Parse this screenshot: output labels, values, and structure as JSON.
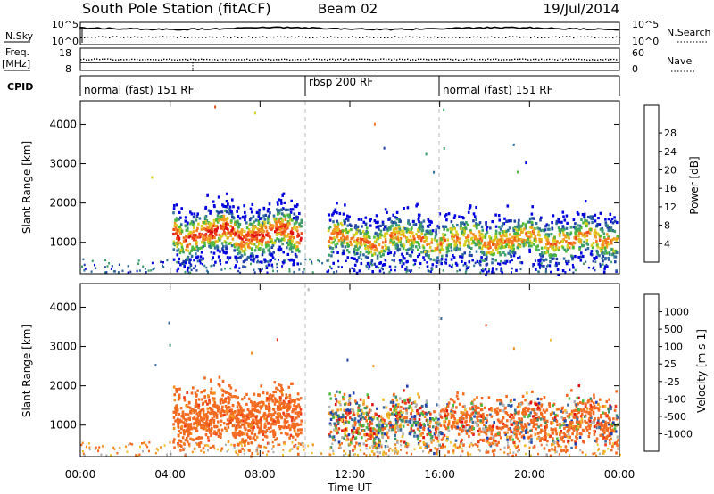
{
  "header": {
    "station": "South Pole Station (fitACF)",
    "beam": "Beam 02",
    "date": "19/Jul/2014"
  },
  "summary": {
    "nsky_label": "N.Sky",
    "nsky_ticks": [
      "10^5",
      "10^0"
    ],
    "nsearch_label": "N.Search",
    "nsearch_ticks": [
      "10^5",
      "10^0"
    ],
    "freq_label_top": "Freq.",
    "freq_label_bottom": "[MHz]",
    "freq_ticks": [
      "18",
      "8"
    ],
    "nave_label": "Nave",
    "nave_ticks": [
      "60",
      "0"
    ],
    "cpid_label": "CPID",
    "cpid_segments": [
      {
        "label": "normal (fast) 151 RF",
        "start_hour": 0
      },
      {
        "label": "rbsp 200 RF",
        "start_hour": 10
      },
      {
        "label": "normal (fast) 151 RF",
        "start_hour": 16
      }
    ]
  },
  "chart_data": [
    {
      "type": "heatmap",
      "ylabel": "Slant Range [km]",
      "yticks": [
        "1000",
        "2000",
        "3000",
        "4000"
      ],
      "xlim_hours": [
        0,
        24
      ],
      "ylim_km": [
        200,
        4600
      ],
      "colorbar": {
        "label": "Power [dB]",
        "ticks": [
          "4",
          "8",
          "12",
          "16",
          "20",
          "24",
          "28"
        ],
        "colors": [
          "#0000e0",
          "#1e3ea8",
          "#2f6e9a",
          "#3d9e6a",
          "#4fb93a",
          "#d7d020",
          "#f2a020",
          "#f67820",
          "#f04818",
          "#e01010"
        ]
      },
      "echo_regions": [
        {
          "t0": 4.1,
          "t1": 9.8,
          "r0": 600,
          "r1": 1900,
          "intensity": "high"
        },
        {
          "t0": 11.0,
          "t1": 23.9,
          "r0": 500,
          "r1": 1700,
          "intensity": "medium"
        }
      ]
    },
    {
      "type": "heatmap",
      "ylabel": "Slant Range [km]",
      "yticks": [
        "1000",
        "2000",
        "3000",
        "4000"
      ],
      "xlim_hours": [
        0,
        24
      ],
      "ylim_km": [
        200,
        4600
      ],
      "colorbar": {
        "label": "Velocity [m s-1]",
        "ticks": [
          "1000",
          "500",
          "100",
          "25",
          "-25",
          "-100",
          "-500",
          "-1000"
        ],
        "colors": [
          "#2040b0",
          "#3a6aa0",
          "#3f8a6a",
          "#50b840",
          "#b0b0b0",
          "#f0c030",
          "#f29020",
          "#f46a20",
          "#f03a18",
          "#e01010"
        ]
      },
      "echo_regions": [
        {
          "t0": 4.1,
          "t1": 9.8,
          "r0": 600,
          "r1": 1900,
          "dominant": "-100"
        },
        {
          "t0": 11.0,
          "t1": 23.9,
          "r0": 500,
          "r1": 1700,
          "dominant": "mixed"
        }
      ]
    }
  ],
  "xaxis": {
    "ticks": [
      "00:00",
      "04:00",
      "08:00",
      "12:00",
      "16:00",
      "20:00",
      "00:00"
    ],
    "label": "Time UT"
  }
}
